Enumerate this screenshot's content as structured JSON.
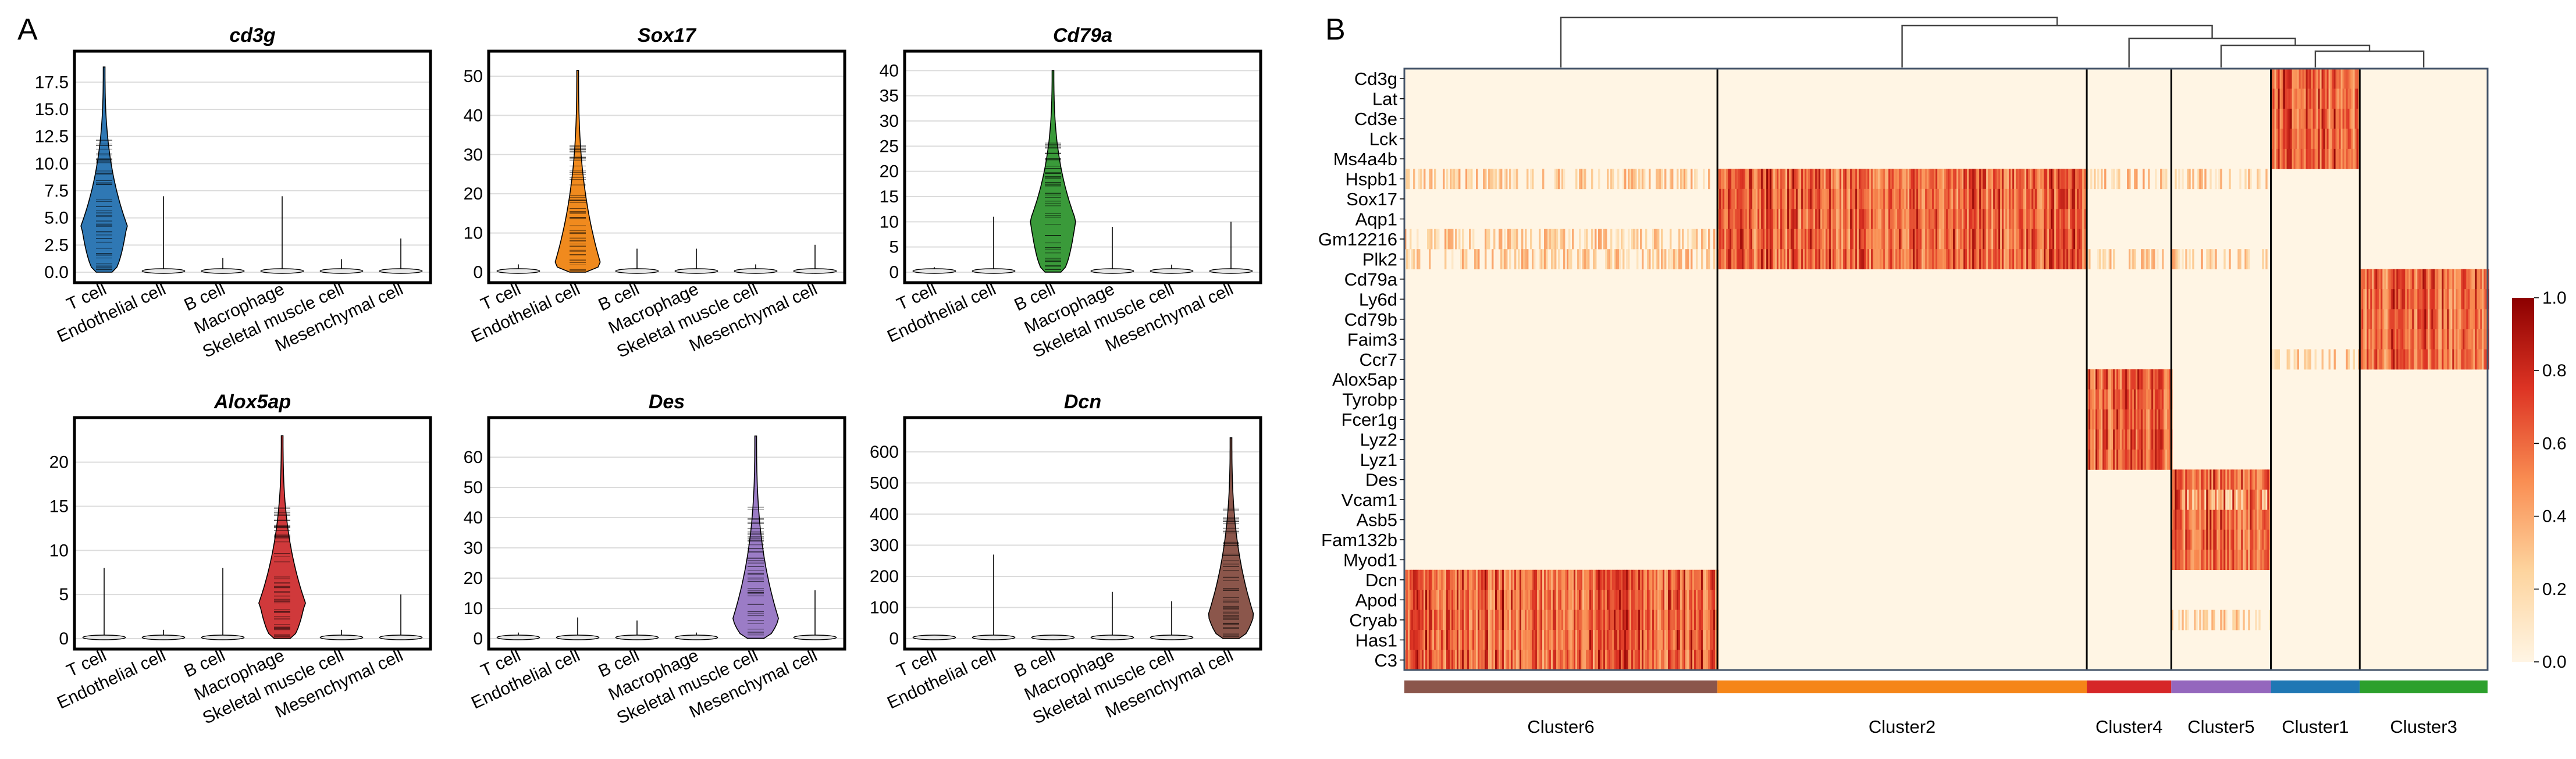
{
  "panels": {
    "a": "A",
    "b": "B"
  },
  "chart_data": [
    {
      "type": "violin",
      "title": "cd3g",
      "categories": [
        "T cell",
        "Endothelial cell",
        "B cell",
        "Macrophage",
        "Skeletal muscle cell",
        "Mesenchymal cell"
      ],
      "ylim": [
        0,
        19.5
      ],
      "yticks": [
        0.0,
        2.5,
        5.0,
        7.5,
        10.0,
        12.5,
        15.0,
        17.5
      ],
      "ytick_labels": [
        "0.0",
        "2.5",
        "5.0",
        "7.5",
        "10.0",
        "12.5",
        "15.0",
        "17.5"
      ],
      "highlight_index": 0,
      "highlight_color": "#2f78b4",
      "max_values": [
        18.9,
        7.0,
        1.3,
        7.0,
        1.2,
        3.1
      ],
      "median_values": [
        4.2,
        0.0,
        0.0,
        0.1,
        0.0,
        0.0
      ]
    },
    {
      "type": "violin",
      "title": "Sox17",
      "categories": [
        "T cell",
        "Endothelial cell",
        "B cell",
        "Macrophage",
        "Skeletal muscle cell",
        "Mesenchymal cell"
      ],
      "ylim": [
        0,
        54
      ],
      "yticks": [
        0,
        10,
        20,
        30,
        40,
        50
      ],
      "ytick_labels": [
        "0",
        "10",
        "20",
        "30",
        "40",
        "50"
      ],
      "highlight_index": 1,
      "highlight_color": "#f08a1e",
      "max_values": [
        2.0,
        51.5,
        6.0,
        6.0,
        2.0,
        7.0
      ],
      "median_values": [
        0,
        1.5,
        0,
        0,
        0,
        0
      ]
    },
    {
      "type": "violin",
      "title": "Cd79a",
      "categories": [
        "T cell",
        "Endothelial cell",
        "B cell",
        "Macrophage",
        "Skeletal muscle cell",
        "Mesenchymal cell"
      ],
      "ylim": [
        0,
        42
      ],
      "yticks": [
        0,
        5,
        10,
        15,
        20,
        25,
        30,
        35,
        40
      ],
      "ytick_labels": [
        "0",
        "5",
        "10",
        "15",
        "20",
        "25",
        "30",
        "35",
        "40"
      ],
      "highlight_index": 2,
      "highlight_color": "#3a9a3a",
      "max_values": [
        1.0,
        11.0,
        40.0,
        9.0,
        1.5,
        10.0
      ],
      "median_values": [
        0,
        0,
        10,
        0,
        0,
        0
      ]
    },
    {
      "type": "violin",
      "title": "Alox5ap",
      "categories": [
        "T cell",
        "Endothelial cell",
        "B cell",
        "Macrophage",
        "Skeletal muscle cell",
        "Mesenchymal cell"
      ],
      "ylim": [
        0,
        24
      ],
      "yticks": [
        0,
        5,
        10,
        15,
        20
      ],
      "ytick_labels": [
        "0",
        "5",
        "10",
        "15",
        "20"
      ],
      "highlight_index": 3,
      "highlight_color": "#d0393b",
      "max_values": [
        8.0,
        1.0,
        8.0,
        23.0,
        1.0,
        5.0
      ],
      "median_values": [
        0,
        0,
        0,
        4,
        0,
        0
      ]
    },
    {
      "type": "violin",
      "title": "Des",
      "categories": [
        "T cell",
        "Endothelial cell",
        "B cell",
        "Macrophage",
        "Skeletal muscle cell",
        "Mesenchymal cell"
      ],
      "ylim": [
        0,
        70
      ],
      "yticks": [
        0,
        10,
        20,
        30,
        40,
        50,
        60
      ],
      "ytick_labels": [
        "0",
        "10",
        "20",
        "30",
        "40",
        "50",
        "60"
      ],
      "highlight_index": 4,
      "highlight_color": "#9b7cc6",
      "max_values": [
        2.0,
        7.0,
        6.0,
        2.0,
        67.0,
        16.0
      ],
      "median_values": [
        0,
        0,
        0,
        0,
        6,
        0
      ]
    },
    {
      "type": "violin",
      "title": "Dcn",
      "categories": [
        "T cell",
        "Endothelial cell",
        "B cell",
        "Macrophage",
        "Skeletal muscle cell",
        "Mesenchymal cell"
      ],
      "ylim": [
        0,
        680
      ],
      "yticks": [
        0,
        100,
        200,
        300,
        400,
        500,
        600
      ],
      "ytick_labels": [
        "0",
        "100",
        "200",
        "300",
        "400",
        "500",
        "600"
      ],
      "highlight_index": 5,
      "highlight_color": "#8b564b",
      "max_values": [
        5,
        270,
        5,
        150,
        120,
        645
      ],
      "median_values": [
        0,
        0,
        0,
        0,
        0,
        70
      ]
    },
    {
      "type": "heatmap",
      "genes": [
        "Cd3g",
        "Lat",
        "Cd3e",
        "Lck",
        "Ms4a4b",
        "Hspb1",
        "Sox17",
        "Aqp1",
        "Gm12216",
        "Plk2",
        "Cd79a",
        "Ly6d",
        "Cd79b",
        "Faim3",
        "Ccr7",
        "Alox5ap",
        "Tyrobp",
        "Fcer1g",
        "Lyz2",
        "Lyz1",
        "Des",
        "Vcam1",
        "Asb5",
        "Fam132b",
        "Myod1",
        "Dcn",
        "Apod",
        "Cryab",
        "Has1",
        "C3"
      ],
      "clusters": [
        {
          "name": "Cluster6",
          "color": "#8b564b",
          "weight": 0.289
        },
        {
          "name": "Cluster2",
          "color": "#f58518",
          "weight": 0.341
        },
        {
          "name": "Cluster4",
          "color": "#d62728",
          "weight": 0.078
        },
        {
          "name": "Cluster5",
          "color": "#9467bd",
          "weight": 0.092
        },
        {
          "name": "Cluster1",
          "color": "#1f77b4",
          "weight": 0.082
        },
        {
          "name": "Cluster3",
          "color": "#2ca02c",
          "weight": 0.118
        }
      ],
      "colorbar": {
        "min": 0.0,
        "max": 1.0,
        "ticks": [
          "0.0",
          "0.2",
          "0.4",
          "0.6",
          "0.8",
          "1.0"
        ],
        "tick_values": [
          0.0,
          0.2,
          0.4,
          0.6,
          0.8,
          1.0
        ]
      },
      "dendrogram_order": [
        "Cluster6",
        [
          "Cluster2",
          [
            "Cluster4",
            [
              "Cluster5",
              [
                "Cluster1",
                "Cluster3"
              ]
            ]
          ]
        ]
      ]
    }
  ]
}
